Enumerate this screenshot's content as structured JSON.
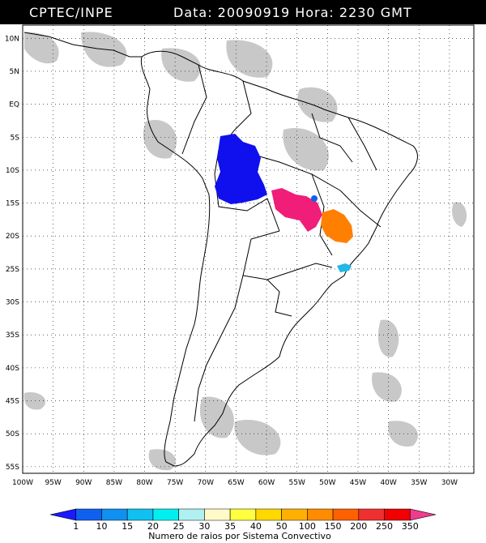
{
  "header": {
    "source": "CPTEC/INPE",
    "datetime": "Data: 20090919 Hora: 2230 GMT"
  },
  "map": {
    "lat_ticks": [
      "10N",
      "5N",
      "EQ",
      "5S",
      "10S",
      "15S",
      "20S",
      "25S",
      "30S",
      "35S",
      "40S",
      "45S",
      "50S",
      "55S"
    ],
    "lon_ticks": [
      "100W",
      "95W",
      "90W",
      "85W",
      "80W",
      "75W",
      "70W",
      "65W",
      "60W",
      "55W",
      "50W",
      "45W",
      "40W",
      "35W",
      "30W"
    ],
    "lat_range": [
      -56,
      12
    ],
    "lon_range": [
      -100,
      -26
    ],
    "gridlines": "dotted",
    "lightning_clusters": [
      {
        "name": "west-amazon",
        "color": "#1010ee",
        "class": "1"
      },
      {
        "name": "mato-grosso",
        "color": "#f01e78",
        "class": "350"
      },
      {
        "name": "minas-gerais",
        "color": "#ff8000",
        "class": "150"
      },
      {
        "name": "sao-paulo-coast",
        "color": "#20b8e8",
        "class": "20"
      },
      {
        "name": "goias-dot",
        "color": "#1060f0",
        "class": "10"
      }
    ]
  },
  "colorbar": {
    "labels": [
      "1",
      "10",
      "15",
      "20",
      "25",
      "30",
      "35",
      "40",
      "50",
      "100",
      "150",
      "200",
      "250",
      "350"
    ],
    "colors": [
      "#1a1aff",
      "#1060f0",
      "#1090f0",
      "#10c0f0",
      "#00f0f0",
      "#b0f0f0",
      "#fffac8",
      "#ffff40",
      "#ffd800",
      "#ffb000",
      "#ff8c00",
      "#ff6000",
      "#f03030",
      "#f00000",
      "#f03c8c"
    ],
    "caption": "Numero de raios por Sistema Convectivo"
  }
}
